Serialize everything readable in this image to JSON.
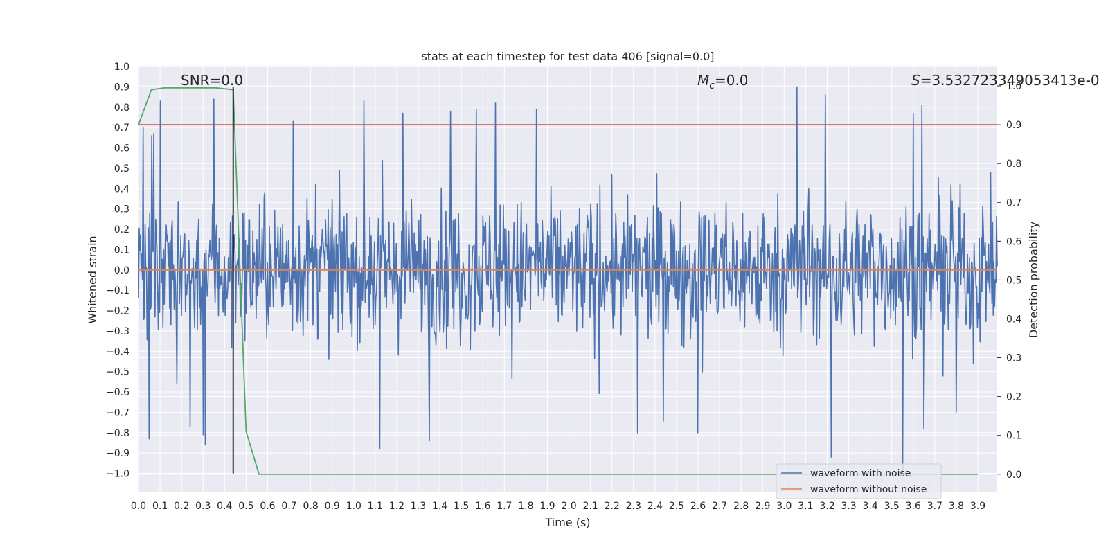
{
  "chart_data": {
    "type": "line",
    "title": "stats at each timestep for test data 406 [signal=0.0]",
    "xlabel": "Time (s)",
    "ylabel": "Whitened strain",
    "ylabel_right": "Detection probability",
    "xlim": [
      0.0,
      3.99
    ],
    "ylim": [
      -1.09,
      1.0
    ],
    "ylim_right": [
      -0.045,
      1.05
    ],
    "x_ticks": [
      "0.0",
      "0.1",
      "0.2",
      "0.3",
      "0.4",
      "0.5",
      "0.6",
      "0.7",
      "0.8",
      "0.9",
      "1.0",
      "1.1",
      "1.2",
      "1.3",
      "1.4",
      "1.5",
      "1.6",
      "1.7",
      "1.8",
      "1.9",
      "2.0",
      "2.1",
      "2.2",
      "2.3",
      "2.4",
      "2.5",
      "2.6",
      "2.7",
      "2.8",
      "2.9",
      "3.0",
      "3.1",
      "3.2",
      "3.3",
      "3.4",
      "3.5",
      "3.6",
      "3.7",
      "3.8",
      "3.9"
    ],
    "y_ticks": [
      "1.0",
      "0.9",
      "0.8",
      "0.7",
      "0.6",
      "0.5",
      "0.4",
      "0.3",
      "0.2",
      "0.1",
      "0.0",
      "−0.1",
      "−0.2",
      "−0.3",
      "−0.4",
      "−0.5",
      "−0.6",
      "−0.7",
      "−0.8",
      "−0.9",
      "−1.0"
    ],
    "y_right_ticks": [
      "1.0",
      "0.9",
      "0.8",
      "0.7",
      "0.6",
      "0.5",
      "0.4",
      "0.3",
      "0.2",
      "0.1",
      "0.0"
    ],
    "grid": true,
    "legend_position": "bottom-right",
    "annotations": {
      "snr": "SNR=0.0",
      "mc_symbol": "M",
      "mc_sub": "c",
      "mc_value": "=0.0",
      "s_symbol": "S",
      "s_value": "=3.532723349053413e-0"
    },
    "series": [
      {
        "name": "waveform with noise",
        "color": "#4c72b0",
        "axis": "left",
        "sample_count": 1300,
        "x_range": [
          0.0,
          3.99
        ],
        "peaks": [
          {
            "x": 0.02,
            "y": 0.7
          },
          {
            "x": 0.06,
            "y": 0.66
          },
          {
            "x": 0.07,
            "y": 0.67
          },
          {
            "x": 0.1,
            "y": 0.83
          },
          {
            "x": 0.35,
            "y": 0.84
          },
          {
            "x": 0.72,
            "y": 0.73
          },
          {
            "x": 1.23,
            "y": 0.77
          },
          {
            "x": 1.45,
            "y": 0.78
          },
          {
            "x": 1.57,
            "y": 0.79
          },
          {
            "x": 1.66,
            "y": 0.82
          },
          {
            "x": 1.85,
            "y": 0.79
          },
          {
            "x": 3.06,
            "y": 0.9
          },
          {
            "x": 3.19,
            "y": 0.86
          },
          {
            "x": 3.6,
            "y": 0.77
          },
          {
            "x": 3.64,
            "y": 0.81
          }
        ],
        "troughs": [
          {
            "x": 0.05,
            "y": -0.83
          },
          {
            "x": 0.24,
            "y": -0.77
          },
          {
            "x": 0.3,
            "y": -0.81
          },
          {
            "x": 0.31,
            "y": -0.86
          },
          {
            "x": 1.12,
            "y": -0.88
          },
          {
            "x": 1.35,
            "y": -0.84
          },
          {
            "x": 2.32,
            "y": -0.8
          },
          {
            "x": 2.6,
            "y": -0.8
          },
          {
            "x": 3.22,
            "y": -0.92
          },
          {
            "x": 3.55,
            "y": -1.0
          },
          {
            "x": 3.65,
            "y": -0.78
          },
          {
            "x": 3.8,
            "y": -0.7
          }
        ]
      },
      {
        "name": "waveform without noise",
        "color": "#dd8452",
        "axis": "left",
        "x": [
          0.0,
          3.99
        ],
        "y": [
          0.0,
          0.0
        ]
      },
      {
        "name": "",
        "color": "#55a868",
        "axis": "right",
        "x": [
          0.0,
          0.06,
          0.12,
          0.18,
          0.24,
          0.3,
          0.36,
          0.44,
          0.5,
          0.56,
          0.6,
          3.9
        ],
        "y": [
          0.9,
          0.99,
          0.995,
          0.995,
          0.995,
          0.995,
          0.995,
          0.99,
          0.11,
          0.0,
          0.0,
          0.0
        ]
      },
      {
        "name": "",
        "color": "#c44e52",
        "axis": "right",
        "x": [
          0.0,
          3.99
        ],
        "y": [
          0.9,
          0.9
        ]
      },
      {
        "name": "",
        "color": "#000000",
        "axis": "left",
        "x": [
          0.44,
          0.44
        ],
        "y": [
          -1.0,
          0.9
        ]
      }
    ]
  }
}
